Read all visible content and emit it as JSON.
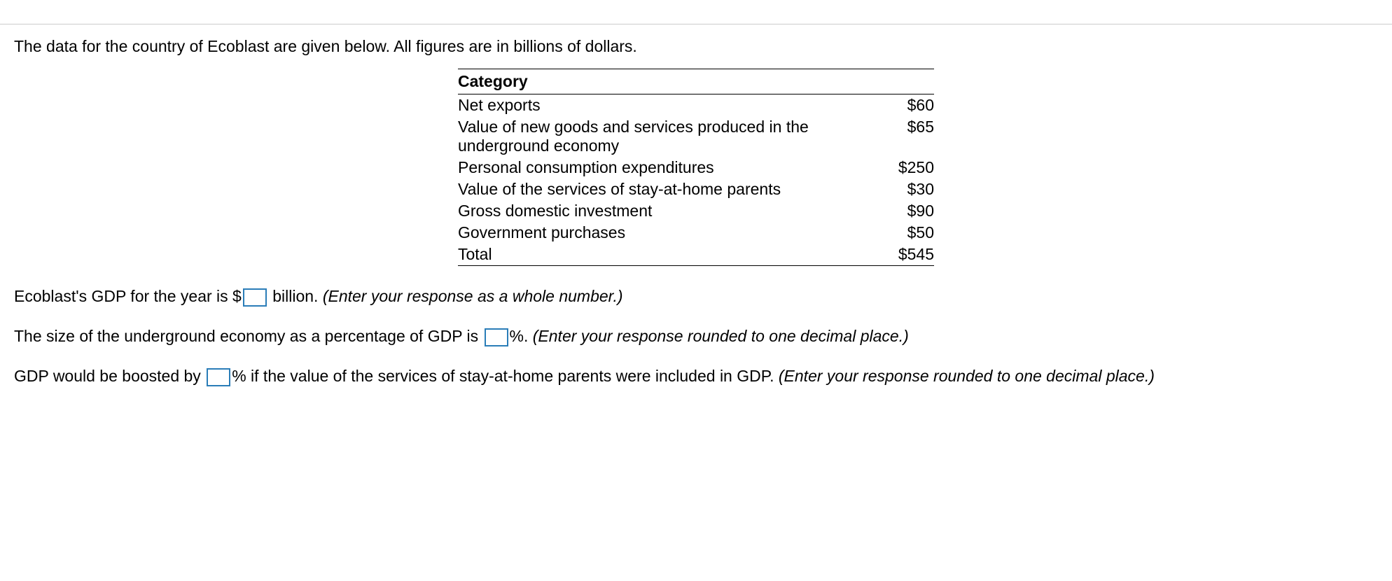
{
  "intro": "The data for the country of Ecoblast are given below. All figures are in billions of dollars.",
  "table": {
    "header": "Category",
    "rows": [
      {
        "label": "Net exports",
        "value": "$60"
      },
      {
        "label": "Value of new goods and services produced in the underground economy",
        "value": "$65"
      },
      {
        "label": "Personal consumption expenditures",
        "value": "$250"
      },
      {
        "label": "Value of the services of stay-at-home parents",
        "value": "$30"
      },
      {
        "label": "Gross domestic investment",
        "value": "$90"
      },
      {
        "label": "Government purchases",
        "value": "$50"
      },
      {
        "label": "Total",
        "value": "$545"
      }
    ]
  },
  "q1": {
    "pre": "Ecoblast's GDP for the year is $",
    "post": " billion. ",
    "hint": "(Enter your response as a whole number.)"
  },
  "q2": {
    "pre": "The size of the underground economy as a percentage of GDP is ",
    "post": "%. ",
    "hint": "(Enter your response rounded to one decimal place.)"
  },
  "q3": {
    "pre": "GDP would be boosted by ",
    "post": "% if the value of the services of stay-at-home parents were included in GDP. ",
    "hint": "(Enter your response rounded to one decimal place.)"
  }
}
